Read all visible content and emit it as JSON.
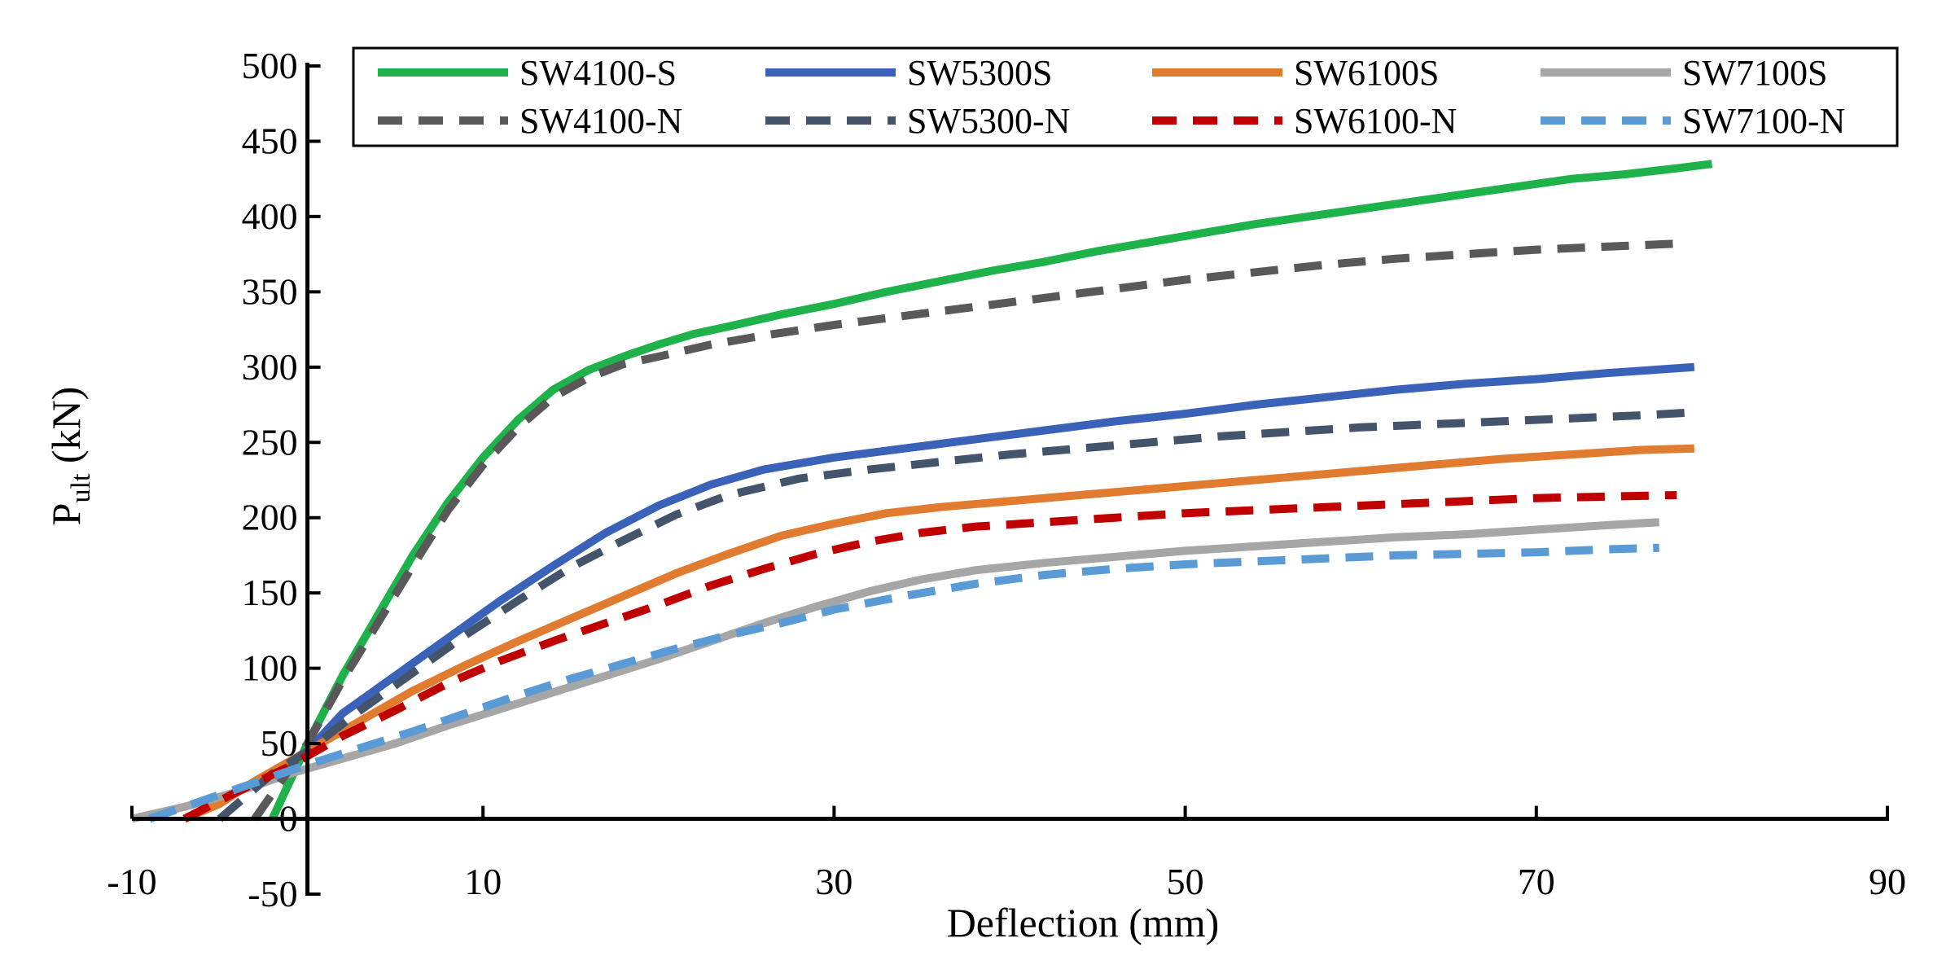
{
  "chart_data": {
    "type": "line",
    "title": "",
    "xlabel": "Deflection (mm)",
    "ylabel_main": "P",
    "ylabel_sub": "ult",
    "ylabel_unit": " (kN)",
    "xlim": [
      -10,
      90
    ],
    "ylim": [
      -50,
      500
    ],
    "xticks": [
      "-10",
      "10",
      "30",
      "50",
      "70",
      "90"
    ],
    "yticks": [
      "500",
      "450",
      "400",
      "350",
      "300",
      "250",
      "200",
      "150",
      "100",
      "50",
      "0",
      "-50"
    ],
    "legend_position": "top",
    "series": [
      {
        "name": "SW4100-S",
        "color": "#1fb24a",
        "style": "solid",
        "x": [
          -2,
          0,
          2,
          4,
          6,
          8,
          10,
          12,
          14,
          16,
          18,
          20,
          22,
          24,
          27,
          30,
          33,
          36,
          39,
          42,
          45,
          48,
          51,
          54,
          57,
          60,
          63,
          66,
          69,
          72,
          75,
          78,
          80
        ],
        "y": [
          0,
          50,
          95,
          135,
          175,
          210,
          240,
          265,
          285,
          298,
          307,
          315,
          322,
          327,
          335,
          342,
          350,
          357,
          364,
          370,
          377,
          383,
          389,
          395,
          400,
          405,
          410,
          415,
          420,
          425,
          428,
          432,
          435
        ]
      },
      {
        "name": "SW5300S",
        "color": "#3a62b8",
        "style": "solid",
        "x": [
          -2,
          0,
          2,
          5,
          8,
          11,
          14,
          17,
          20,
          23,
          26,
          30,
          34,
          38,
          42,
          46,
          50,
          54,
          58,
          62,
          66,
          70,
          74,
          79
        ],
        "y": [
          30,
          45,
          70,
          95,
          120,
          145,
          168,
          190,
          208,
          222,
          232,
          240,
          246,
          252,
          258,
          264,
          269,
          275,
          280,
          285,
          289,
          292,
          296,
          300
        ]
      },
      {
        "name": "SW6100S",
        "color": "#e07b2f",
        "style": "solid",
        "x": [
          -7,
          -5,
          -3,
          0,
          3,
          6,
          9,
          12,
          15,
          18,
          21,
          24,
          27,
          30,
          33,
          36,
          40,
          44,
          48,
          52,
          56,
          60,
          64,
          68,
          72,
          76,
          79
        ],
        "y": [
          0,
          10,
          25,
          45,
          65,
          85,
          102,
          118,
          133,
          148,
          163,
          176,
          188,
          196,
          203,
          207,
          211,
          215,
          219,
          223,
          227,
          231,
          235,
          239,
          242,
          245,
          246
        ]
      },
      {
        "name": "SW7100S",
        "color": "#a6a6a6",
        "style": "solid",
        "x": [
          -10,
          -7,
          -4,
          -1,
          2,
          5,
          8,
          11,
          14,
          17,
          20,
          23,
          26,
          29,
          32,
          35,
          38,
          42,
          46,
          50,
          54,
          58,
          62,
          66,
          70,
          74,
          77
        ],
        "y": [
          0,
          8,
          18,
          30,
          40,
          50,
          62,
          73,
          84,
          95,
          106,
          118,
          130,
          141,
          151,
          159,
          165,
          170,
          174,
          178,
          181,
          184,
          187,
          189,
          192,
          195,
          197
        ]
      },
      {
        "name": "SW4100-N",
        "color": "#595959",
        "style": "dash",
        "x": [
          -3,
          0,
          2,
          4,
          6,
          8,
          10,
          12,
          14,
          16,
          18,
          20,
          23,
          26,
          30,
          34,
          38,
          42,
          46,
          50,
          54,
          58,
          62,
          66,
          70,
          74,
          78
        ],
        "y": [
          0,
          50,
          92,
          130,
          168,
          205,
          235,
          260,
          280,
          293,
          302,
          307,
          315,
          321,
          328,
          334,
          340,
          346,
          352,
          358,
          363,
          368,
          372,
          375,
          378,
          380,
          382
        ]
      },
      {
        "name": "SW5300-N",
        "color": "#44546a",
        "style": "dash",
        "x": [
          -5,
          -2,
          0,
          3,
          6,
          9,
          12,
          15,
          18,
          21,
          24,
          28,
          32,
          36,
          40,
          44,
          48,
          52,
          56,
          60,
          64,
          68,
          72,
          76,
          79
        ],
        "y": [
          0,
          30,
          45,
          72,
          97,
          122,
          145,
          167,
          185,
          202,
          215,
          226,
          232,
          237,
          242,
          246,
          250,
          254,
          257,
          260,
          262,
          264,
          266,
          268,
          270
        ]
      },
      {
        "name": "SW6100-N",
        "color": "#c00000",
        "style": "dash",
        "x": [
          -7,
          -4,
          -1,
          2,
          5,
          8,
          11,
          14,
          17,
          20,
          23,
          26,
          29,
          32,
          35,
          38,
          42,
          46,
          50,
          54,
          58,
          62,
          66,
          70,
          74,
          78
        ],
        "y": [
          0,
          18,
          35,
          55,
          72,
          90,
          105,
          118,
          130,
          142,
          155,
          166,
          176,
          184,
          190,
          194,
          197,
          200,
          203,
          205,
          207,
          209,
          211,
          213,
          214,
          215
        ]
      },
      {
        "name": "SW7100-N",
        "color": "#5b9bd5",
        "style": "dash",
        "x": [
          -9,
          -6,
          -3,
          0,
          3,
          6,
          9,
          12,
          15,
          18,
          21,
          24,
          27,
          30,
          34,
          38,
          42,
          46,
          50,
          54,
          58,
          62,
          66,
          70,
          74,
          77
        ],
        "y": [
          0,
          12,
          24,
          36,
          47,
          58,
          70,
          82,
          93,
          103,
          113,
          122,
          130,
          139,
          148,
          156,
          162,
          166,
          169,
          171,
          173,
          175,
          176,
          177,
          179,
          180
        ]
      }
    ]
  }
}
